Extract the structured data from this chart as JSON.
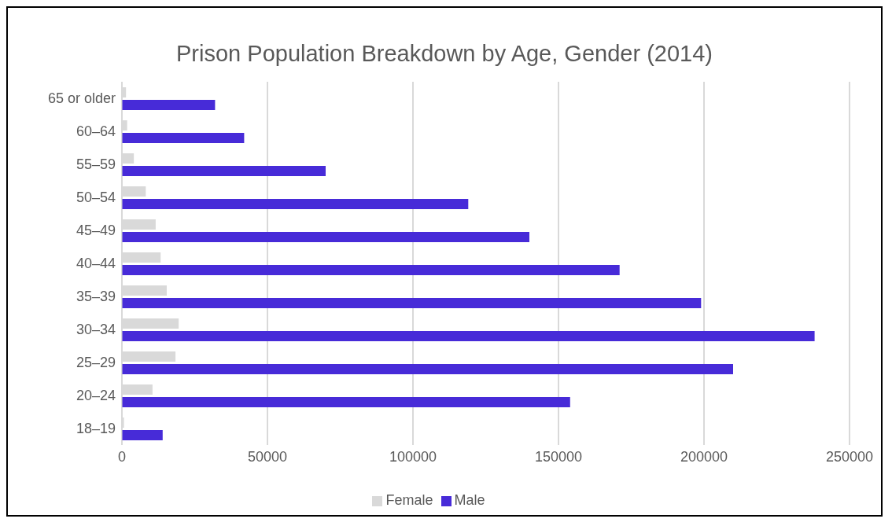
{
  "chart_data": {
    "type": "bar",
    "orientation": "horizontal",
    "title": "Prison Population Breakdown by Age, Gender (2014)",
    "categories": [
      "65 or older",
      "60–64",
      "55–59",
      "50–54",
      "45–49",
      "40–44",
      "35–39",
      "30–34",
      "25–29",
      "20–24",
      "18–19"
    ],
    "series": [
      {
        "name": "Female",
        "color": "#d9d9d9",
        "values": [
          1400,
          1800,
          4100,
          8200,
          11600,
          13300,
          15400,
          19500,
          18400,
          10500,
          700
        ]
      },
      {
        "name": "Male",
        "color": "#472bd8",
        "values": [
          32000,
          42000,
          70000,
          119000,
          140000,
          171000,
          199000,
          238000,
          210000,
          154000,
          14000
        ]
      }
    ],
    "xlim": [
      0,
      250000
    ],
    "xticks": [
      0,
      50000,
      100000,
      150000,
      200000,
      250000
    ],
    "grid": "x",
    "legend": "bottom"
  }
}
